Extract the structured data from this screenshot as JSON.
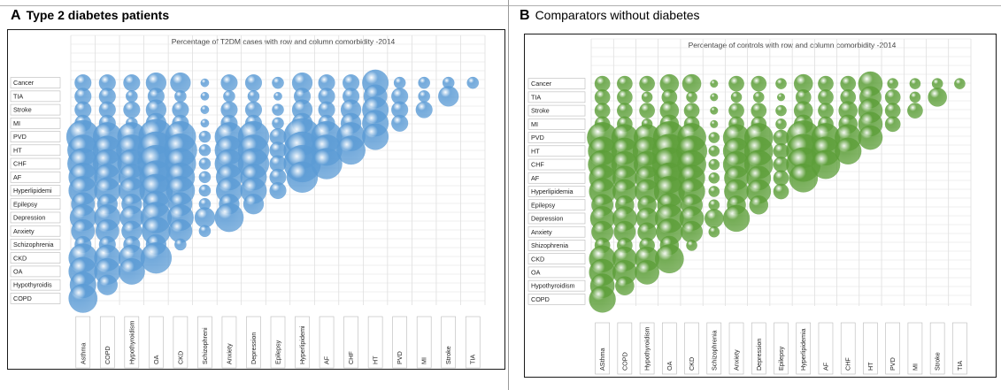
{
  "panels": {
    "a": {
      "letter": "A",
      "heading": "Type 2 diabetes patients"
    },
    "b": {
      "letter": "B",
      "heading": "Comparators without diabetes"
    }
  },
  "colors": {
    "panel_a_bubble": "#5b9bd5",
    "panel_b_bubble": "#5c9e38"
  },
  "chart_data": [
    {
      "type": "scatter",
      "subtype": "bubble",
      "title": "Percentage of T2DM cases with row and column comorbidity -2014",
      "rows": [
        "Cancer",
        "TIA",
        "Stroke",
        "MI",
        "PVD",
        "HT",
        "CHF",
        "AF",
        "Hyperlipidemi",
        "Epilepsy",
        "Depression",
        "Anxiety",
        "Schizophrenia",
        "CKD",
        "OA",
        "Hypothyroidis",
        "COPD"
      ],
      "columns": [
        "Asthma",
        "COPD",
        "Hypothyroidism",
        "OA",
        "CKD",
        "Schizophreni",
        "Anxiety",
        "Depression",
        "Epilepsy",
        "Hyperlipidemi",
        "AF",
        "CHF",
        "HT",
        "PVD",
        "MI",
        "Stroke",
        "TIA"
      ],
      "bubble_sizes": [
        [
          2,
          2,
          2,
          3,
          3,
          0.5,
          2,
          2,
          1,
          3,
          2,
          2,
          5,
          1,
          1,
          1,
          1
        ],
        [
          2,
          2,
          1,
          2,
          1,
          0.5,
          1,
          1,
          0.5,
          2,
          2,
          2,
          4,
          2,
          1,
          3
        ],
        [
          2,
          2,
          2,
          3,
          2,
          0.5,
          2,
          2,
          1,
          3,
          2,
          3,
          5,
          2,
          2
        ],
        [
          2,
          2,
          1,
          3,
          2,
          0.5,
          2,
          2,
          1,
          3,
          2,
          3,
          5,
          2
        ],
        [
          8,
          6,
          6,
          9,
          7,
          1,
          6,
          7,
          2,
          10,
          7,
          6,
          5
        ],
        [
          7,
          6,
          7,
          10,
          8,
          1,
          6,
          7,
          2,
          10,
          7,
          6
        ],
        [
          7,
          6,
          6,
          10,
          7,
          1,
          6,
          7,
          2,
          10,
          7
        ],
        [
          6,
          5,
          5,
          8,
          6,
          1,
          5,
          5,
          2,
          7
        ],
        [
          6,
          5,
          5,
          8,
          6,
          1,
          5,
          5,
          2
        ],
        [
          4,
          3,
          3,
          5,
          4,
          1,
          3,
          3
        ],
        [
          5,
          5,
          4,
          7,
          5,
          3,
          6
        ],
        [
          4,
          4,
          3,
          6,
          4,
          1
        ],
        [
          2,
          2,
          2,
          3,
          1
        ],
        [
          6,
          5,
          5,
          7
        ],
        [
          6,
          5,
          5
        ],
        [
          5,
          3
        ],
        [
          6
        ]
      ]
    },
    {
      "type": "scatter",
      "subtype": "bubble",
      "title": "Percentage of controls with row and column comorbidity -2014",
      "rows": [
        "Cancer",
        "TIA",
        "Stroke",
        "MI",
        "PVD",
        "HT",
        "CHF",
        "AF",
        "Hyperlipidemia",
        "Epilepsy",
        "Depression",
        "Anxiety",
        "Shizophrenia",
        "CKD",
        "OA",
        "Hypothyroidism",
        "COPD"
      ],
      "columns": [
        "ASthma",
        "COPD",
        "Hypothyroidism",
        "OA",
        "CKD",
        "Schizophrenia",
        "Anxiety",
        "Depression",
        "Epilepsy",
        "Hyperlipidemia",
        "AF",
        "CHF",
        "HT",
        "PVD",
        "MI",
        "Stroke",
        "TIA"
      ],
      "bubble_sizes": [
        [
          2,
          2,
          2,
          3,
          3,
          0.5,
          2,
          2,
          1,
          3,
          2,
          2,
          5,
          1,
          1,
          1,
          1
        ],
        [
          2,
          2,
          1,
          2,
          1,
          0.5,
          1,
          1,
          0.5,
          2,
          2,
          2,
          4,
          2,
          1,
          3
        ],
        [
          2,
          2,
          2,
          3,
          2,
          0.5,
          2,
          2,
          1,
          3,
          2,
          3,
          5,
          2,
          2
        ],
        [
          2,
          2,
          1,
          3,
          2,
          0.5,
          2,
          2,
          1,
          3,
          2,
          3,
          5,
          2
        ],
        [
          8,
          6,
          6,
          9,
          7,
          1,
          6,
          7,
          2,
          10,
          7,
          6,
          5
        ],
        [
          7,
          6,
          7,
          10,
          8,
          1,
          6,
          7,
          2,
          10,
          7,
          6
        ],
        [
          7,
          6,
          6,
          10,
          7,
          1,
          6,
          7,
          2,
          10,
          7
        ],
        [
          6,
          5,
          5,
          8,
          6,
          1,
          5,
          5,
          2,
          7
        ],
        [
          6,
          5,
          5,
          8,
          6,
          1,
          5,
          5,
          2
        ],
        [
          4,
          3,
          3,
          5,
          4,
          1,
          3,
          3
        ],
        [
          5,
          5,
          4,
          7,
          5,
          3,
          6
        ],
        [
          4,
          4,
          3,
          6,
          4,
          1
        ],
        [
          2,
          2,
          2,
          3,
          1
        ],
        [
          6,
          5,
          5,
          7
        ],
        [
          6,
          5,
          5
        ],
        [
          5,
          3
        ],
        [
          6
        ]
      ]
    }
  ]
}
